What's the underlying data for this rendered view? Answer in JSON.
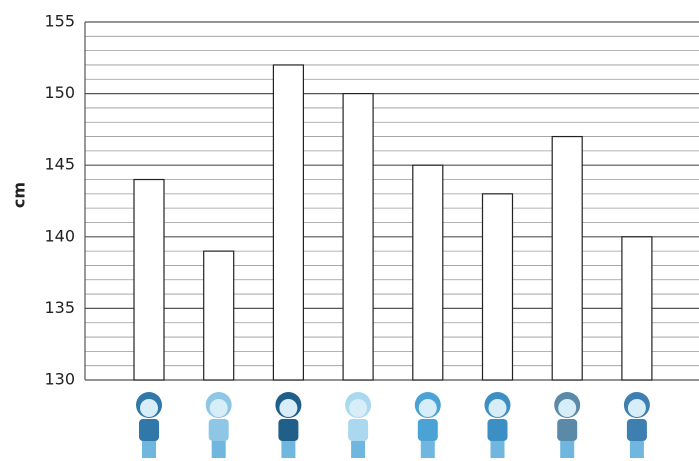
{
  "chart_data": {
    "type": "bar",
    "y_label": "cm",
    "categories": [
      null,
      null,
      null,
      null,
      null,
      null,
      null,
      null
    ],
    "values": [
      144,
      139,
      152,
      150,
      145,
      143,
      147,
      140
    ],
    "color": "#ffffff",
    "ylim": [
      130,
      155
    ],
    "yticks": [
      130,
      135,
      140,
      145,
      150,
      155
    ],
    "minor_yticks": [
      131,
      132,
      133,
      134,
      136,
      137,
      138,
      139,
      141,
      142,
      143,
      144,
      146,
      147,
      148,
      149,
      151,
      152,
      153,
      154
    ],
    "grid": true
  }
}
